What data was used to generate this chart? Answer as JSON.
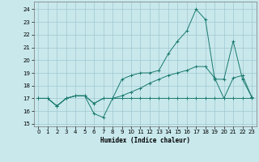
{
  "xlabel": "Humidex (Indice chaleur)",
  "xlim": [
    -0.5,
    23.5
  ],
  "ylim": [
    14.8,
    24.6
  ],
  "yticks": [
    15,
    16,
    17,
    18,
    19,
    20,
    21,
    22,
    23,
    24
  ],
  "xticks": [
    0,
    1,
    2,
    3,
    4,
    5,
    6,
    7,
    8,
    9,
    10,
    11,
    12,
    13,
    14,
    15,
    16,
    17,
    18,
    19,
    20,
    21,
    22,
    23
  ],
  "bg_color": "#c8e8ec",
  "grid_color": "#a0c8d0",
  "line_color": "#1a7a6e",
  "line1_x": [
    0,
    1,
    2,
    3,
    4,
    5,
    6,
    7,
    8,
    9,
    10,
    11,
    12,
    13,
    14,
    15,
    16,
    17,
    18,
    19,
    20,
    21,
    22,
    23
  ],
  "line1_y": [
    17.0,
    17.0,
    16.4,
    17.0,
    17.2,
    17.2,
    15.8,
    15.5,
    17.0,
    17.0,
    17.0,
    17.0,
    17.0,
    17.0,
    17.0,
    17.0,
    17.0,
    17.0,
    17.0,
    17.0,
    17.0,
    17.0,
    17.0,
    17.0
  ],
  "line2_x": [
    0,
    1,
    2,
    3,
    4,
    5,
    6,
    7,
    8,
    9,
    10,
    11,
    12,
    13,
    14,
    15,
    16,
    17,
    18,
    19,
    20,
    21,
    22,
    23
  ],
  "line2_y": [
    17.0,
    17.0,
    16.4,
    17.0,
    17.2,
    17.2,
    16.6,
    17.0,
    17.0,
    18.5,
    18.8,
    19.0,
    19.0,
    19.2,
    20.5,
    21.5,
    22.3,
    24.0,
    23.2,
    18.5,
    18.5,
    21.5,
    18.5,
    17.1
  ],
  "line3_x": [
    0,
    1,
    2,
    3,
    4,
    5,
    6,
    7,
    8,
    9,
    10,
    11,
    12,
    13,
    14,
    15,
    16,
    17,
    18,
    19,
    20,
    21,
    22,
    23
  ],
  "line3_y": [
    17.0,
    17.0,
    16.4,
    17.0,
    17.2,
    17.2,
    16.6,
    17.0,
    17.0,
    17.2,
    17.5,
    17.8,
    18.2,
    18.5,
    18.8,
    19.0,
    19.2,
    19.5,
    19.5,
    18.6,
    17.0,
    18.6,
    18.8,
    17.1
  ]
}
